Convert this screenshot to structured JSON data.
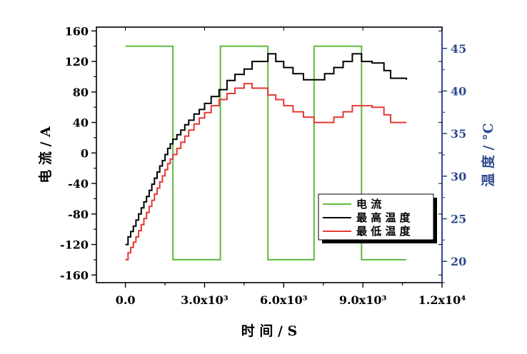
{
  "chart_data": {
    "type": "line",
    "xlabel": "时 间 / S",
    "ylabel_left": "电 流 / A",
    "ylabel_right": "温 度 / °C",
    "x_ticks": [
      0,
      3000,
      6000,
      9000,
      12000
    ],
    "x_tick_labels": [
      "0.0",
      "3.0x10³",
      "6.0x10³",
      "9.0x10³",
      "1.2x10⁴"
    ],
    "xlim": [
      -1100,
      12000
    ],
    "ylim_left": [
      -170,
      165
    ],
    "ylim_right": [
      17.5,
      47.5
    ],
    "y_left_ticks": [
      -160,
      -120,
      -80,
      -40,
      0,
      40,
      80,
      120,
      160
    ],
    "y_left_tick_labels": [
      "-160",
      "-120",
      "-80",
      "-40",
      "0",
      "40",
      "80",
      "120",
      "160"
    ],
    "y_right_ticks": [
      20,
      25,
      30,
      35,
      40,
      45
    ],
    "y_right_tick_labels": [
      "20",
      "25",
      "30",
      "35",
      "40",
      "45"
    ],
    "legend": {
      "placement": "lower-right",
      "entries": [
        "电 流",
        "最 高 温 度",
        "最 低 温 度"
      ]
    },
    "colors": {
      "current": "#5dbb3f",
      "max_temp": "#000000",
      "min_temp": "#e53935",
      "right_axis": "#2e4a8e"
    },
    "series": [
      {
        "name": "电 流",
        "axis": "left",
        "x": [
          0,
          1800,
          1800,
          3600,
          3600,
          5400,
          5400,
          7150,
          7150,
          8950,
          8950,
          10650
        ],
        "y": [
          140,
          140,
          -140,
          -140,
          140,
          140,
          -140,
          -140,
          140,
          140,
          -140,
          -140
        ]
      },
      {
        "name": "最 高 温 度",
        "axis": "left",
        "x": [
          0,
          100,
          200,
          300,
          400,
          500,
          600,
          700,
          800,
          900,
          1000,
          1100,
          1200,
          1300,
          1400,
          1500,
          1600,
          1700,
          1800,
          1950,
          2100,
          2250,
          2400,
          2600,
          2800,
          3000,
          3250,
          3550,
          3850,
          4150,
          4500,
          4800,
          5400,
          5700,
          6000,
          6350,
          6750,
          7150,
          7550,
          7900,
          8250,
          8600,
          8950,
          9350,
          9800,
          10050,
          10650
        ],
        "y": [
          -120,
          -110,
          -103,
          -96,
          -88,
          -80,
          -72,
          -64,
          -57,
          -49,
          -41,
          -33,
          -25,
          -17,
          -10,
          -2,
          6,
          12,
          18,
          24,
          30,
          37,
          43,
          51,
          57,
          65,
          74,
          83,
          95,
          103,
          110,
          120,
          130,
          120,
          112,
          104,
          96,
          96,
          104,
          112,
          120,
          130,
          120,
          118,
          108,
          98,
          96
        ]
      },
      {
        "name": "最 低 温 度",
        "axis": "left",
        "x": [
          0,
          100,
          200,
          300,
          400,
          500,
          600,
          700,
          800,
          900,
          1000,
          1100,
          1200,
          1300,
          1400,
          1500,
          1600,
          1700,
          1800,
          1950,
          2100,
          2250,
          2400,
          2600,
          2800,
          3000,
          3250,
          3550,
          3850,
          4150,
          4500,
          4800,
          5400,
          5700,
          6000,
          6350,
          6750,
          7150,
          7550,
          7900,
          8250,
          8600,
          8950,
          9350,
          9800,
          10050,
          10650
        ],
        "y": [
          -140,
          -131,
          -124,
          -117,
          -110,
          -102,
          -94,
          -86,
          -78,
          -70,
          -62,
          -54,
          -46,
          -38,
          -30,
          -22,
          -14,
          -8,
          -2,
          6,
          14,
          22,
          30,
          38,
          46,
          53,
          62,
          70,
          78,
          85,
          91,
          85,
          76,
          70,
          62,
          54,
          47,
          40,
          40,
          47,
          54,
          62,
          62,
          60,
          50,
          40,
          40
        ]
      }
    ]
  }
}
